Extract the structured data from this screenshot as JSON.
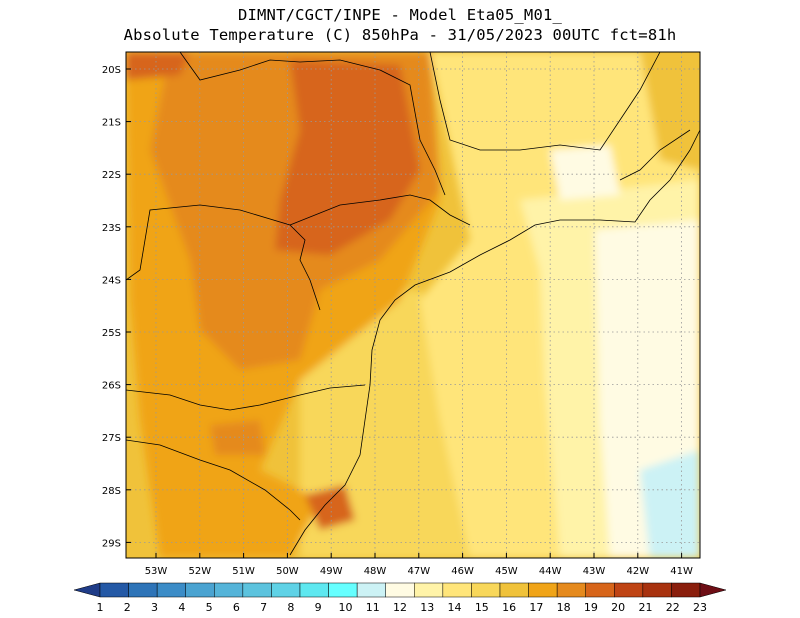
{
  "header": {
    "line1": "DIMNT/CGCT/INPE -  Model Eta05_M01_",
    "line2": "Absolute Temperature (C) 850hPa -  31/05/2023 00UTC fct=81h"
  },
  "map": {
    "lat_labels": [
      "20S",
      "21S",
      "22S",
      "23S",
      "24S",
      "25S",
      "26S",
      "27S",
      "28S",
      "29S"
    ],
    "lon_labels": [
      "53W",
      "52W",
      "51W",
      "50W",
      "49W",
      "48W",
      "47W",
      "46W",
      "45W",
      "44W",
      "43W",
      "42W",
      "41W"
    ]
  },
  "colorbar": {
    "labels": [
      "1",
      "2",
      "3",
      "4",
      "5",
      "6",
      "7",
      "8",
      "9",
      "10",
      "11",
      "12",
      "13",
      "14",
      "15",
      "16",
      "17",
      "18",
      "19",
      "20",
      "21",
      "22",
      "23"
    ],
    "colors": [
      "#1f3c88",
      "#2459a6",
      "#2e74b8",
      "#3b8cc7",
      "#4aa3d1",
      "#55b4d9",
      "#5cc3de",
      "#5fd2e6",
      "#5ee8f0",
      "#66ffff",
      "#ccf2f5",
      "#fffbe3",
      "#fff3a8",
      "#ffe57a",
      "#f8d75a",
      "#f0c23a",
      "#f0a418",
      "#e58a1e",
      "#d7651a",
      "#bf4414",
      "#a8320f",
      "#8a1e0c",
      "#6e0e15"
    ]
  }
}
